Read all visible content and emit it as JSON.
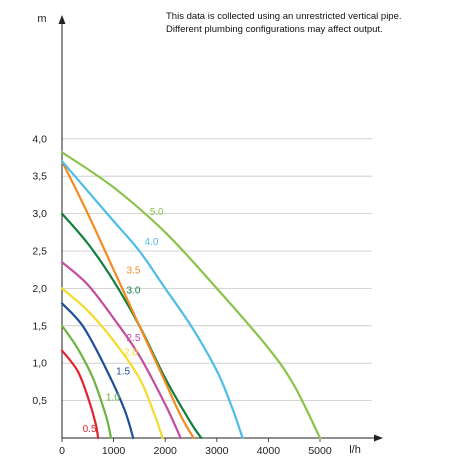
{
  "note": {
    "line1": "This data is collected using an unrestricted vertical pipe.",
    "line2": "Different plumbing configurations may affect output."
  },
  "chart_data": {
    "type": "line",
    "xlabel": "l/h",
    "ylabel": "m",
    "xlim": [
      0,
      6000
    ],
    "ylim": [
      0,
      4.0
    ],
    "x_ticks": [
      0,
      1000,
      2000,
      3000,
      4000,
      5000
    ],
    "x_tick_labels": [
      "0",
      "1000",
      "2000",
      "3000",
      "4000",
      "5000"
    ],
    "y_ticks": [
      0.5,
      1.0,
      1.5,
      2.0,
      2.5,
      3.0,
      3.5,
      4.0
    ],
    "y_tick_labels": [
      "0,5",
      "1,0",
      "1,5",
      "2,0",
      "2,5",
      "3,0",
      "3,5",
      "4,0"
    ],
    "grid": "horizontal",
    "series": [
      {
        "name": "0.5",
        "color": "#e2232e",
        "x": [
          0,
          300,
          500,
          650,
          700
        ],
        "y": [
          1.17,
          0.9,
          0.55,
          0.2,
          0.0
        ]
      },
      {
        "name": "1.0",
        "color": "#6cb33f",
        "x": [
          0,
          300,
          600,
          850,
          950
        ],
        "y": [
          1.5,
          1.2,
          0.8,
          0.3,
          0.0
        ]
      },
      {
        "name": "1.5",
        "color": "#1f4e9b",
        "x": [
          0,
          400,
          800,
          1200,
          1380
        ],
        "y": [
          1.8,
          1.5,
          1.0,
          0.4,
          0.0
        ]
      },
      {
        "name": "2.0",
        "color": "#f5dc2a",
        "x": [
          0,
          500,
          1000,
          1500,
          1800,
          1950
        ],
        "y": [
          2.0,
          1.7,
          1.3,
          0.8,
          0.3,
          0.0
        ]
      },
      {
        "name": "2.5",
        "color": "#c44d9d",
        "x": [
          0,
          500,
          1000,
          1500,
          2000,
          2300
        ],
        "y": [
          2.35,
          2.05,
          1.6,
          1.1,
          0.45,
          0.0
        ]
      },
      {
        "name": "3.0",
        "color": "#137f3c",
        "x": [
          0,
          500,
          1000,
          1500,
          2000,
          2500,
          2700
        ],
        "y": [
          3.0,
          2.6,
          2.1,
          1.5,
          0.8,
          0.2,
          0.0
        ]
      },
      {
        "name": "3.5",
        "color": "#f38b20",
        "x": [
          0,
          500,
          1000,
          1500,
          2000,
          2300,
          2550
        ],
        "y": [
          3.7,
          3.0,
          2.25,
          1.5,
          0.75,
          0.3,
          0.0
        ]
      },
      {
        "name": "4.0",
        "color": "#4cbde6",
        "x": [
          0,
          500,
          1000,
          1500,
          2000,
          2500,
          3000,
          3300,
          3500
        ],
        "y": [
          3.7,
          3.3,
          2.9,
          2.5,
          2.0,
          1.5,
          0.9,
          0.4,
          0.0
        ]
      },
      {
        "name": "5.0",
        "color": "#8bc34a",
        "x": [
          0,
          1000,
          2000,
          3000,
          4000,
          4500,
          5000
        ],
        "y": [
          3.82,
          3.35,
          2.75,
          2.0,
          1.2,
          0.7,
          0.0
        ]
      }
    ],
    "series_labels": [
      {
        "text": "0.5",
        "color": "#e2232e",
        "x": 400,
        "y": 0.08
      },
      {
        "text": "1.0",
        "color": "#6cb33f",
        "x": 850,
        "y": 0.5
      },
      {
        "text": "1.5",
        "color": "#1f4e9b",
        "x": 1050,
        "y": 0.85
      },
      {
        "text": "2.0",
        "color": "#f5dc2a",
        "x": 1200,
        "y": 1.1
      },
      {
        "text": "2.5",
        "color": "#c44d9d",
        "x": 1250,
        "y": 1.3
      },
      {
        "text": "3.0",
        "color": "#137f3c",
        "x": 1250,
        "y": 1.93
      },
      {
        "text": "3.5",
        "color": "#f38b20",
        "x": 1250,
        "y": 2.2
      },
      {
        "text": "4.0",
        "color": "#4cbde6",
        "x": 1600,
        "y": 2.58
      },
      {
        "text": "5.0",
        "color": "#8bc34a",
        "x": 1700,
        "y": 2.98
      }
    ]
  }
}
